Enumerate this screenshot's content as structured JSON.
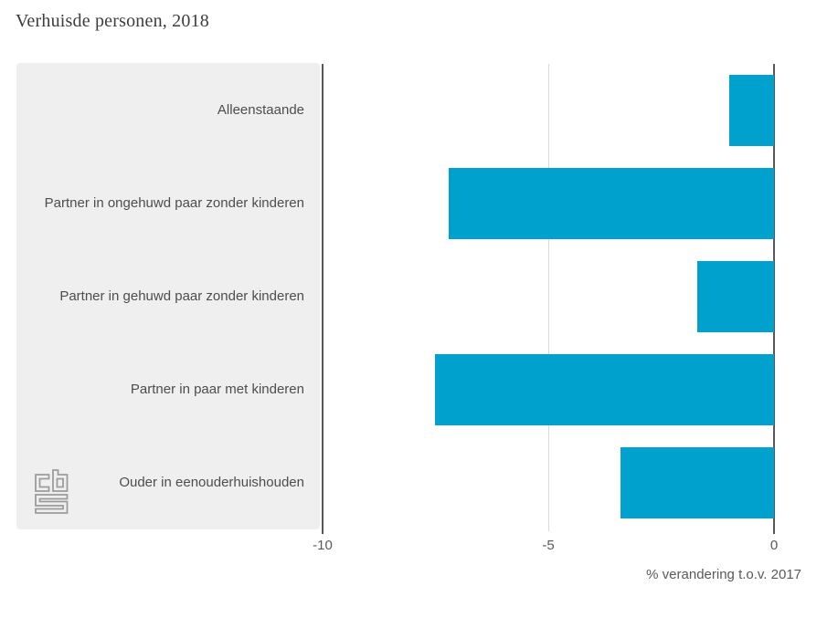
{
  "title": "Verhuisde personen, 2018",
  "chart_data": {
    "type": "bar",
    "orientation": "horizontal",
    "categories": [
      "Alleenstaande",
      "Partner in ongehuwd paar zonder kinderen",
      "Partner in gehuwd paar zonder kinderen",
      "Partner in paar met kinderen",
      "Ouder in eenouderhuishouden"
    ],
    "values": [
      -1.0,
      -7.2,
      -1.7,
      -7.5,
      -3.4
    ],
    "title": "Verhuisde personen, 2018",
    "xlabel": "% verandering t.o.v. 2017",
    "ylabel": "",
    "xlim": [
      -10,
      0
    ],
    "xticks": [
      -10,
      -5,
      0
    ],
    "grid": "vertical line at -5 only, dark axis lines at -10 and 0",
    "legend": "none"
  },
  "colors": {
    "bar": "#00a1cd",
    "panel_background": "#efefef",
    "axis_line_dark": "#58585a",
    "gridline_light": "#d9d9d9",
    "category_text": "#4d4d4d",
    "tick_text": "#595959",
    "title_text": "#3d3d3d",
    "logo_stroke": "#9c9c9c"
  },
  "logo": {
    "name": "cbs-logo",
    "description": "CBS (Centraal Bureau voor de Statistiek) maze-style logo"
  }
}
